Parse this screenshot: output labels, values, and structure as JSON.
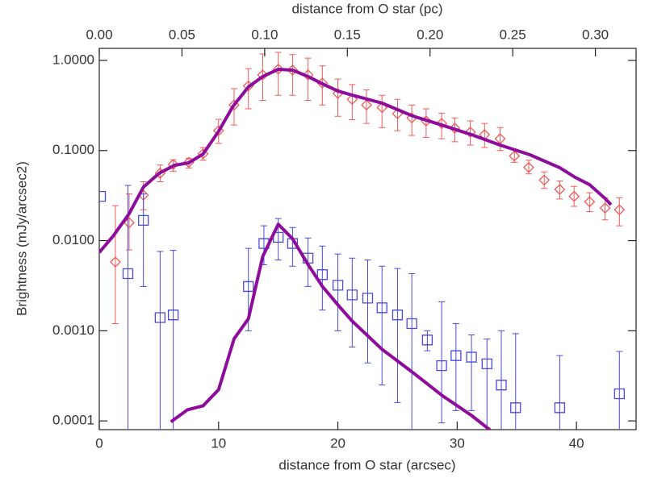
{
  "chart_data": {
    "type": "scatter",
    "xlabel": "distance from O star (arcsec)",
    "x2label": "distance from O star (pc)",
    "ylabel": "Brightness (mJy/arcsec2)",
    "xlim": [
      0,
      45
    ],
    "xticks": [
      0,
      10,
      20,
      30,
      40
    ],
    "x2lim": [
      0,
      0.3246
    ],
    "x2ticks": [
      {
        "value": 0,
        "label": "0.00"
      },
      {
        "value": 0.05,
        "label": "0.05"
      },
      {
        "value": 0.1,
        "label": "0.10"
      },
      {
        "value": 0.15,
        "label": "0.15"
      },
      {
        "value": 0.2,
        "label": "0.20"
      },
      {
        "value": 0.25,
        "label": "0.25"
      },
      {
        "value": 0.3,
        "label": "0.30"
      }
    ],
    "ylim": [
      8e-05,
      1.36
    ],
    "log_y": true,
    "yticks": [
      {
        "value": 1,
        "label": "1.0000"
      },
      {
        "value": 0.1,
        "label": "0.1000"
      },
      {
        "value": 0.01,
        "label": "0.0100"
      },
      {
        "value": 0.001,
        "label": "0.0010"
      },
      {
        "value": 0.0001,
        "label": "0.0001"
      }
    ],
    "series": [
      {
        "kind": "points",
        "marker": "diamond",
        "color": "#f05a5a",
        "x": [
          1.35,
          2.5,
          3.7,
          5.1,
          6.2,
          7.5,
          8.7,
          10,
          11.3,
          12.5,
          13.7,
          15,
          16.2,
          17.5,
          18.7,
          20,
          21.2,
          22.4,
          23.7,
          25,
          26.2,
          27.4,
          28.7,
          29.8,
          31.1,
          32.3,
          33.6,
          34.8,
          36,
          37.3,
          38.6,
          39.8,
          41.1,
          42.4,
          43.6
        ],
        "values": [
          0.0058,
          0.0158,
          0.032,
          0.056,
          0.07,
          0.074,
          0.092,
          0.166,
          0.32,
          0.52,
          0.69,
          0.8,
          0.78,
          0.69,
          0.56,
          0.43,
          0.37,
          0.32,
          0.3,
          0.256,
          0.23,
          0.213,
          0.2,
          0.177,
          0.16,
          0.15,
          0.135,
          0.087,
          0.065,
          0.047,
          0.037,
          0.031,
          0.027,
          0.023,
          0.022
        ],
        "lower": [
          0.0012,
          0.0079,
          0.022,
          0.045,
          0.059,
          0.064,
          0.078,
          0.12,
          0.192,
          0.29,
          0.36,
          0.41,
          0.41,
          0.36,
          0.32,
          0.24,
          0.22,
          0.2,
          0.18,
          0.166,
          0.147,
          0.14,
          0.135,
          0.125,
          0.115,
          0.108,
          0.1,
          0.074,
          0.055,
          0.038,
          0.029,
          0.024,
          0.021,
          0.017,
          0.0146
        ],
        "upper": [
          0.0244,
          0.033,
          0.045,
          0.069,
          0.079,
          0.082,
          0.108,
          0.222,
          0.486,
          0.81,
          1.18,
          1.23,
          1.16,
          1.06,
          0.87,
          0.62,
          0.54,
          0.47,
          0.41,
          0.37,
          0.32,
          0.29,
          0.26,
          0.23,
          0.213,
          0.2,
          0.18,
          0.102,
          0.078,
          0.058,
          0.046,
          0.04,
          0.034,
          0.03,
          0.03
        ]
      },
      {
        "kind": "points",
        "marker": "square",
        "color": "#4a4ae0",
        "x": [
          0.1,
          2.4,
          3.7,
          5.1,
          6.2,
          12.5,
          13.8,
          15,
          16.2,
          17.5,
          18.7,
          20,
          21.2,
          22.5,
          23.7,
          25,
          26.2,
          27.5,
          28.7,
          29.9,
          31.2,
          32.5,
          33.7,
          34.9,
          38.6,
          43.6
        ],
        "values": [
          0.031,
          0.0043,
          0.0168,
          0.0014,
          0.0015,
          0.0031,
          0.0093,
          0.0109,
          0.0093,
          0.0064,
          0.0042,
          0.0032,
          0.0025,
          0.0023,
          0.0018,
          0.0015,
          0.0012,
          0.00079,
          0.00041,
          0.00053,
          0.00051,
          0.00043,
          0.00025,
          0.00014,
          0.00014,
          0.0002
        ],
        "lower": [
          null,
          0,
          0.0031,
          0,
          0,
          0.001,
          0.0054,
          0.0061,
          0.0052,
          0.0031,
          0.0017,
          0.001,
          0.00066,
          0.00044,
          0.00025,
          0.00016,
          0,
          0.0006,
          9.5e-05,
          0.00013,
          0.00013,
          0,
          0,
          0,
          0,
          0
        ],
        "upper": [
          null,
          0.041,
          0.033,
          0.0076,
          0.0078,
          0.0082,
          0.0146,
          0.0176,
          0.014,
          0.0107,
          0.0087,
          0.0071,
          0.0064,
          0.0061,
          0.0052,
          0.0049,
          0.0043,
          0.001,
          0.0021,
          0.0012,
          0.0009,
          0.00081,
          0.001,
          0.00093,
          0.00053,
          0.00059
        ]
      },
      {
        "kind": "line",
        "color": "#8e0c9c",
        "x": [
          0,
          1.15,
          2.5,
          3.7,
          5.0,
          6.3,
          7.5,
          8.7,
          10,
          11.2,
          12.5,
          13.7,
          15,
          16.2,
          17.5,
          18.7,
          20,
          21.2,
          23.7,
          26.3,
          28.7,
          31.2,
          33.6,
          36.1,
          38.6,
          39.9,
          41.1,
          42.4,
          42.9
        ],
        "values": [
          0.0074,
          0.0112,
          0.0199,
          0.0393,
          0.0558,
          0.0686,
          0.073,
          0.0915,
          0.163,
          0.309,
          0.507,
          0.662,
          0.797,
          0.78,
          0.662,
          0.55,
          0.457,
          0.412,
          0.336,
          0.241,
          0.192,
          0.15,
          0.115,
          0.0897,
          0.0645,
          0.0503,
          0.0418,
          0.0294,
          0.025
        ]
      },
      {
        "kind": "line",
        "color": "#8e0c9c",
        "x": [
          6.0,
          7.4,
          8.7,
          10,
          11.3,
          12.5,
          13.7,
          15,
          16.2,
          17.5,
          18.7,
          20,
          21.2,
          23.7,
          26.3,
          28.7,
          31.2,
          32.75
        ],
        "values": [
          9.75e-05,
          0.000133,
          0.000147,
          0.000222,
          0.000815,
          0.00136,
          0.00668,
          0.0152,
          0.0105,
          0.00543,
          0.00311,
          0.00194,
          0.00128,
          0.000623,
          0.000343,
          0.000193,
          0.000115,
          7.94e-05
        ]
      }
    ]
  }
}
